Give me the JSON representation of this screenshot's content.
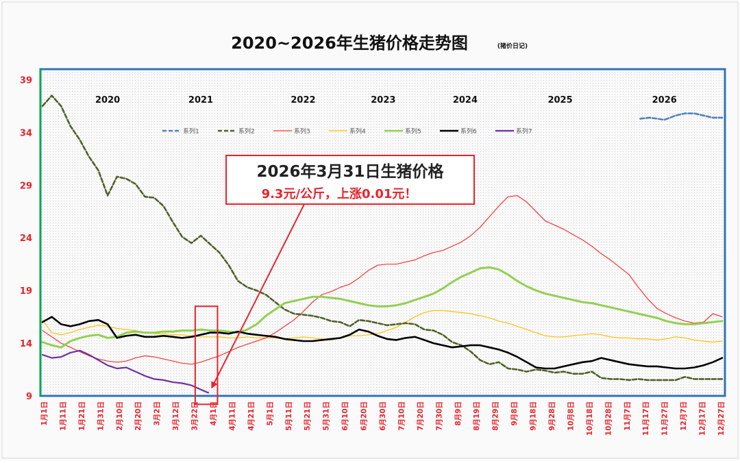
{
  "chart_data": {
    "type": "line",
    "title": "2020~2026年生猪价格走势图",
    "subtitle": "(猪价日记)",
    "ylim": [
      9,
      40
    ],
    "yticks": [
      9,
      14,
      19,
      24,
      29,
      34,
      39
    ],
    "xlim": [
      0,
      365
    ],
    "grid": true,
    "legend_position": "top",
    "categories": [
      "1月1日",
      "1月11日",
      "1月21日",
      "1月31日",
      "2月10日",
      "2月20日",
      "3月2日",
      "3月12日",
      "3月22日",
      "4月1日",
      "4月11日",
      "4月21日",
      "5月1日",
      "5月11日",
      "5月21日",
      "5月31日",
      "6月10日",
      "6月20日",
      "6月30日",
      "7月10日",
      "7月20日",
      "7月30日",
      "8月9日",
      "8月19日",
      "8月29日",
      "9月8日",
      "9月18日",
      "9月28日",
      "10月8日",
      "10月18日",
      "10月28日",
      "11月7日",
      "11月17日",
      "11月27日",
      "12月7日",
      "12月17日",
      "12月27日"
    ],
    "year_labels": [
      {
        "label": "2020",
        "x": 35
      },
      {
        "label": "2021",
        "x": 85
      },
      {
        "label": "2022",
        "x": 140
      },
      {
        "label": "2023",
        "x": 183
      },
      {
        "label": "2024",
        "x": 227
      },
      {
        "label": "2025",
        "x": 278
      },
      {
        "label": "2026",
        "x": 334
      }
    ],
    "series": [
      {
        "name": "系列1",
        "color": "#4f81bd",
        "dash": "6,3",
        "width": 2.6,
        "x": [
          321,
          326,
          330,
          334,
          340,
          345,
          350,
          355,
          360,
          365
        ],
        "y": [
          35.3,
          35.4,
          35.3,
          35.2,
          35.6,
          35.8,
          35.8,
          35.6,
          35.4,
          35.4
        ]
      },
      {
        "name": "系列2",
        "color": "#4f6228",
        "dash": "6,3",
        "width": 2.6,
        "x": [
          0,
          5,
          10,
          15,
          20,
          25,
          30,
          35,
          40,
          45,
          50,
          55,
          60,
          65,
          70,
          75,
          80,
          85,
          90,
          95,
          100,
          105,
          110,
          115,
          120,
          125,
          130,
          135,
          140,
          145,
          150,
          155,
          160,
          165,
          170,
          175,
          180,
          185,
          190,
          195,
          200,
          205,
          210,
          215,
          220,
          225,
          230,
          235,
          240,
          245,
          250,
          255,
          260,
          265,
          270,
          275,
          280,
          285,
          290,
          295,
          300,
          305,
          310,
          315,
          320,
          325,
          330,
          335,
          340,
          345,
          350,
          355,
          360,
          365
        ],
        "y": [
          36.5,
          37.5,
          36.5,
          34.6,
          33.3,
          31.7,
          30.4,
          28.0,
          29.8,
          29.6,
          29.1,
          27.9,
          27.8,
          27.0,
          25.5,
          24.1,
          23.5,
          24.2,
          23.4,
          22.6,
          21.4,
          19.9,
          19.3,
          19.0,
          18.6,
          17.9,
          17.2,
          16.8,
          16.7,
          16.6,
          16.4,
          16.1,
          16.0,
          15.6,
          16.2,
          16.1,
          15.9,
          15.7,
          15.8,
          15.9,
          15.8,
          15.3,
          15.2,
          14.8,
          14.1,
          13.8,
          13.2,
          12.4,
          12.0,
          12.2,
          11.6,
          11.5,
          11.3,
          11.5,
          11.4,
          11.2,
          11.3,
          11.1,
          11.1,
          11.3,
          10.7,
          10.6,
          10.6,
          10.5,
          10.6,
          10.5,
          10.5,
          10.5,
          10.5,
          10.8,
          10.6,
          10.6,
          10.6,
          10.6
        ]
      },
      {
        "name": "系列3",
        "color": "#ff3333",
        "dash": "",
        "width": 1.2,
        "x": [
          0,
          5,
          10,
          15,
          20,
          25,
          30,
          35,
          40,
          45,
          50,
          55,
          60,
          65,
          70,
          75,
          80,
          85,
          90,
          95,
          100,
          105,
          110,
          115,
          120,
          125,
          130,
          135,
          140,
          145,
          150,
          155,
          160,
          165,
          170,
          175,
          180,
          185,
          190,
          195,
          200,
          205,
          210,
          215,
          220,
          225,
          230,
          235,
          240,
          245,
          250,
          255,
          260,
          265,
          270,
          275,
          280,
          285,
          290,
          295,
          300,
          305,
          310,
          315,
          320,
          325,
          330,
          335,
          340,
          345,
          350,
          355,
          360,
          365
        ],
        "y": [
          15.2,
          14.6,
          14.0,
          13.6,
          13.2,
          12.8,
          12.5,
          12.3,
          12.2,
          12.3,
          12.6,
          12.8,
          12.7,
          12.5,
          12.3,
          12.1,
          12.0,
          12.2,
          12.5,
          12.8,
          13.2,
          13.6,
          13.9,
          14.2,
          14.5,
          15.0,
          15.6,
          16.2,
          17.0,
          17.9,
          18.6,
          18.9,
          19.3,
          19.6,
          20.2,
          20.9,
          21.4,
          21.5,
          21.5,
          21.7,
          21.9,
          22.3,
          22.6,
          22.8,
          23.2,
          23.6,
          24.2,
          25.0,
          26.0,
          27.0,
          27.9,
          28.0,
          27.4,
          26.5,
          25.6,
          25.2,
          24.8,
          24.3,
          23.8,
          23.2,
          22.5,
          21.9,
          21.2,
          20.5,
          19.3,
          18.2,
          17.3,
          16.8,
          16.4,
          16.1,
          15.9,
          16.0,
          16.8,
          16.5
        ]
      },
      {
        "name": "系列4",
        "color": "#ffc000",
        "dash": "",
        "width": 1.2,
        "x": [
          0,
          5,
          10,
          15,
          20,
          25,
          30,
          35,
          40,
          45,
          50,
          55,
          60,
          65,
          70,
          75,
          80,
          85,
          90,
          95,
          100,
          105,
          110,
          115,
          120,
          125,
          130,
          135,
          140,
          145,
          150,
          155,
          160,
          165,
          170,
          175,
          180,
          185,
          190,
          195,
          200,
          205,
          210,
          215,
          220,
          225,
          230,
          235,
          240,
          245,
          250,
          255,
          260,
          265,
          270,
          275,
          280,
          285,
          290,
          295,
          300,
          305,
          310,
          315,
          320,
          325,
          330,
          335,
          340,
          345,
          350,
          355,
          360,
          365
        ],
        "y": [
          16.2,
          15.0,
          14.8,
          15.0,
          15.3,
          15.5,
          15.7,
          15.6,
          15.4,
          15.3,
          15.2,
          15.0,
          14.9,
          14.9,
          14.8,
          14.8,
          14.7,
          14.6,
          14.6,
          14.6,
          14.5,
          14.5,
          14.6,
          14.5,
          14.5,
          14.5,
          14.4,
          14.5,
          14.6,
          14.5,
          14.4,
          14.3,
          14.5,
          14.7,
          14.7,
          14.8,
          14.9,
          15.2,
          15.5,
          16.0,
          16.5,
          16.9,
          17.1,
          17.1,
          17.0,
          16.9,
          16.8,
          16.6,
          16.4,
          16.1,
          15.9,
          15.6,
          15.3,
          15.0,
          14.7,
          14.6,
          14.6,
          14.7,
          14.8,
          14.9,
          14.8,
          14.6,
          14.5,
          14.5,
          14.4,
          14.4,
          14.3,
          14.4,
          14.6,
          14.5,
          14.3,
          14.2,
          14.1,
          14.2
        ]
      },
      {
        "name": "系列5",
        "color": "#92d050",
        "dash": "",
        "width": 3,
        "x": [
          0,
          5,
          10,
          15,
          20,
          25,
          30,
          35,
          40,
          45,
          50,
          55,
          60,
          65,
          70,
          75,
          80,
          85,
          90,
          95,
          100,
          105,
          110,
          115,
          120,
          125,
          130,
          135,
          140,
          145,
          150,
          155,
          160,
          165,
          170,
          175,
          180,
          185,
          190,
          195,
          200,
          205,
          210,
          215,
          220,
          225,
          230,
          235,
          240,
          245,
          250,
          255,
          260,
          265,
          270,
          275,
          280,
          285,
          290,
          295,
          300,
          305,
          310,
          315,
          320,
          325,
          330,
          335,
          340,
          345,
          350,
          355,
          360,
          365
        ],
        "y": [
          14.1,
          13.8,
          13.6,
          14.2,
          14.5,
          14.7,
          14.8,
          14.5,
          14.6,
          15.0,
          15.1,
          15.0,
          15.0,
          15.1,
          15.1,
          15.2,
          15.2,
          15.3,
          15.2,
          15.2,
          15.1,
          15.0,
          15.3,
          15.8,
          16.6,
          17.2,
          17.8,
          18.0,
          18.2,
          18.4,
          18.4,
          18.3,
          18.2,
          18.0,
          17.8,
          17.6,
          17.5,
          17.5,
          17.6,
          17.8,
          18.1,
          18.4,
          18.7,
          19.2,
          19.8,
          20.3,
          20.7,
          21.1,
          21.2,
          21.0,
          20.5,
          19.9,
          19.4,
          19.0,
          18.7,
          18.5,
          18.3,
          18.1,
          17.9,
          17.8,
          17.6,
          17.4,
          17.2,
          17.0,
          16.8,
          16.6,
          16.4,
          16.1,
          15.9,
          15.8,
          15.8,
          15.9,
          16.0,
          16.1
        ]
      },
      {
        "name": "系列6",
        "color": "#000000",
        "dash": "",
        "width": 2.6,
        "x": [
          0,
          5,
          10,
          15,
          20,
          25,
          30,
          35,
          40,
          45,
          50,
          55,
          60,
          65,
          70,
          75,
          80,
          85,
          90,
          95,
          100,
          105,
          110,
          115,
          120,
          125,
          130,
          135,
          140,
          145,
          150,
          155,
          160,
          165,
          170,
          175,
          180,
          185,
          190,
          195,
          200,
          205,
          210,
          215,
          220,
          225,
          230,
          235,
          240,
          245,
          250,
          255,
          260,
          265,
          270,
          275,
          280,
          285,
          290,
          295,
          300,
          305,
          310,
          315,
          320,
          325,
          330,
          335,
          340,
          345,
          350,
          355,
          360,
          365
        ],
        "y": [
          16.0,
          16.5,
          15.8,
          15.6,
          15.8,
          16.1,
          16.2,
          15.8,
          14.5,
          14.7,
          14.8,
          14.6,
          14.6,
          14.7,
          14.6,
          14.5,
          14.6,
          14.8,
          15.0,
          15.0,
          14.9,
          15.1,
          14.9,
          14.8,
          14.7,
          14.6,
          14.4,
          14.3,
          14.2,
          14.2,
          14.3,
          14.4,
          14.5,
          14.8,
          15.3,
          15.1,
          14.7,
          14.4,
          14.3,
          14.5,
          14.6,
          14.3,
          14.0,
          13.8,
          13.6,
          13.7,
          13.8,
          13.8,
          13.6,
          13.4,
          13.1,
          12.7,
          12.2,
          11.7,
          11.6,
          11.6,
          11.8,
          12.0,
          12.2,
          12.3,
          12.6,
          12.4,
          12.2,
          12.0,
          11.9,
          11.8,
          11.8,
          11.7,
          11.6,
          11.6,
          11.7,
          11.9,
          12.2,
          12.6
        ]
      },
      {
        "name": "系列7",
        "color": "#7030a0",
        "dash": "",
        "width": 2.2,
        "x": [
          0,
          5,
          10,
          15,
          20,
          25,
          30,
          35,
          40,
          45,
          50,
          55,
          60,
          65,
          70,
          75,
          80,
          85,
          89
        ],
        "y": [
          12.9,
          12.6,
          12.7,
          13.1,
          13.3,
          12.9,
          12.4,
          11.9,
          11.6,
          11.7,
          11.3,
          10.9,
          10.6,
          10.5,
          10.3,
          10.2,
          10.0,
          9.6,
          9.3
        ]
      }
    ],
    "annotation": {
      "line1": "2026年3月31日生猪价格",
      "line2": "9.3元/公斤，上涨0.01元！"
    },
    "highlight": {
      "x_from": 82,
      "x_to": 94,
      "y_from": 8.2,
      "y_to": 17.5
    },
    "arrow": {
      "from_x": 150,
      "from_y": 30.5,
      "to_x": 91,
      "to_y": 9.8
    }
  }
}
